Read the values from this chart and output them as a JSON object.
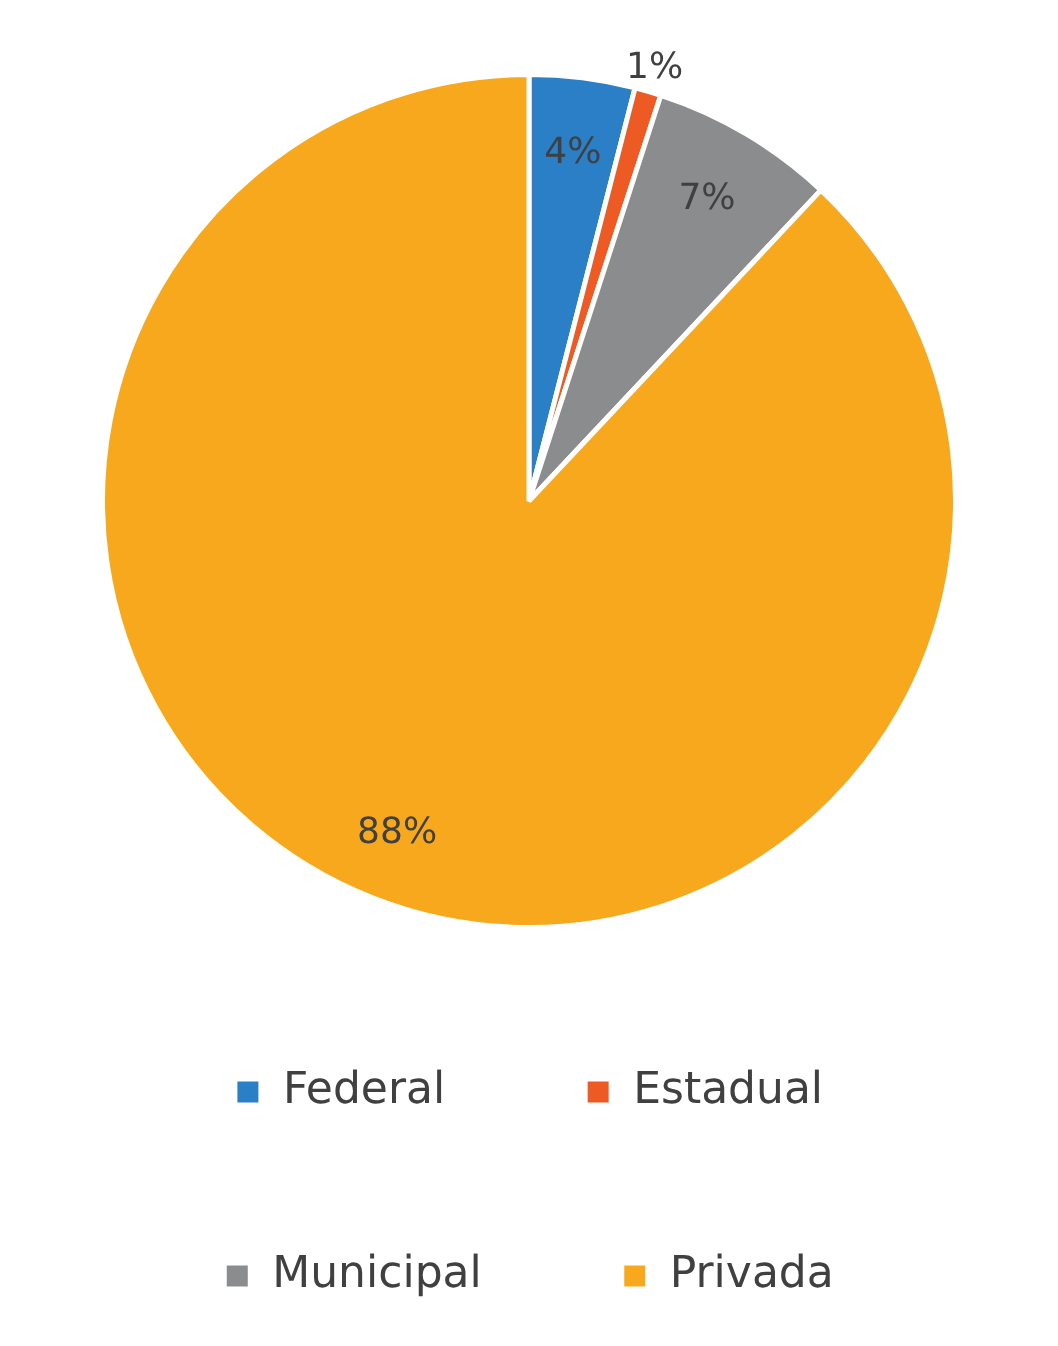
{
  "chart_data": {
    "type": "pie",
    "categories": [
      "Federal",
      "Estadual",
      "Municipal",
      "Privada"
    ],
    "values": [
      4,
      1,
      7,
      88
    ],
    "colors": [
      "#2a7fc6",
      "#ee5a24",
      "#8b8c8e",
      "#f7a81c"
    ],
    "value_labels": [
      "4%",
      "1%",
      "7%",
      "88%"
    ],
    "legend": "bottom"
  }
}
